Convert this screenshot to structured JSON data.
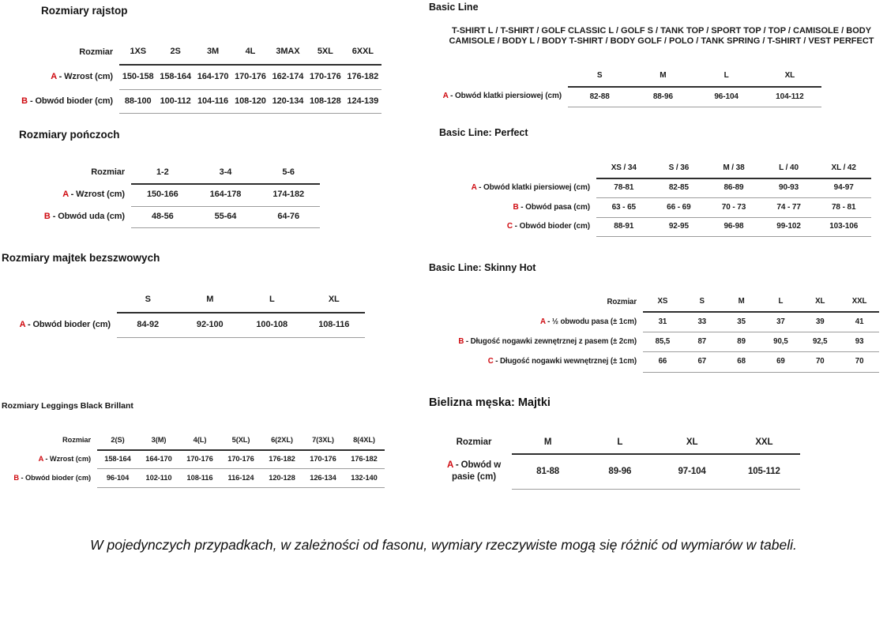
{
  "colors": {
    "accent_red": "#cf0a10",
    "text": "#1b1b1b",
    "rule_dark": "#2e2e2e",
    "rule_light": "#9c9c9c",
    "background": "#ffffff"
  },
  "left": {
    "rajstopy": {
      "title": "Rozmiary rajstop",
      "table": {
        "corner": "Rozmiar",
        "columns": [
          "1XS",
          "2S",
          "3M",
          "4L",
          "3MAX",
          "5XL",
          "6XXL"
        ],
        "rows": [
          {
            "letter": "A",
            "label": "- Wzrost (cm)",
            "values": [
              "150-158",
              "158-164",
              "164-170",
              "170-176",
              "162-174",
              "170-176",
              "176-182"
            ]
          },
          {
            "letter": "B",
            "label": "- Obwód bioder (cm)",
            "values": [
              "88-100",
              "100-112",
              "104-116",
              "108-120",
              "120-134",
              "108-128",
              "124-139"
            ]
          }
        ]
      }
    },
    "ponczochy": {
      "title": "Rozmiary pończoch",
      "table": {
        "corner": "Rozmiar",
        "columns": [
          "1-2",
          "3-4",
          "5-6"
        ],
        "rows": [
          {
            "letter": "A",
            "label": "- Wzrost (cm)",
            "values": [
              "150-166",
              "164-178",
              "174-182"
            ]
          },
          {
            "letter": "B",
            "label": "- Obwód uda (cm)",
            "values": [
              "48-56",
              "55-64",
              "64-76"
            ]
          }
        ]
      }
    },
    "majtki_bezszwowe": {
      "title": "Rozmiary majtek bezszwowych",
      "table": {
        "corner": "",
        "columns": [
          "S",
          "M",
          "L",
          "XL"
        ],
        "rows": [
          {
            "letter": "A",
            "label": "- Obwód bioder (cm)",
            "values": [
              "84-92",
              "92-100",
              "100-108",
              "108-116"
            ]
          }
        ]
      }
    },
    "leggings": {
      "title": "Rozmiary Leggings Black Brillant",
      "table": {
        "corner": "Rozmiar",
        "columns": [
          "2(S)",
          "3(M)",
          "4(L)",
          "5(XL)",
          "6(2XL)",
          "7(3XL)",
          "8(4XL)"
        ],
        "rows": [
          {
            "letter": "A",
            "label": "- Wzrost (cm)",
            "values": [
              "158-164",
              "164-170",
              "170-176",
              "170-176",
              "176-182",
              "170-176",
              "176-182"
            ]
          },
          {
            "letter": "B",
            "label": "- Obwód bioder (cm)",
            "values": [
              "96-104",
              "102-110",
              "108-116",
              "116-124",
              "120-128",
              "126-134",
              "132-140"
            ]
          }
        ]
      }
    }
  },
  "right": {
    "basic_line": {
      "title": "Basic Line",
      "subtitle": "T-SHIRT L / T-SHIRT / GOLF CLASSIC L / GOLF S / TANK TOP / SPORT TOP / TOP / CAMISOLE / BODY CAMISOLE / BODY L / BODY T-SHIRT / BODY GOLF / POLO / TANK SPRING / T-SHIRT / VEST PERFECT",
      "table": {
        "corner": "",
        "columns": [
          "S",
          "M",
          "L",
          "XL"
        ],
        "rows": [
          {
            "letter": "A",
            "label": "- Obwód klatki piersiowej (cm)",
            "values": [
              "82-88",
              "88-96",
              "96-104",
              "104-112"
            ]
          }
        ]
      }
    },
    "basic_line_perfect": {
      "title": "Basic Line: Perfect",
      "table": {
        "corner": "",
        "columns": [
          "XS / 34",
          "S / 36",
          "M / 38",
          "L / 40",
          "XL / 42"
        ],
        "rows": [
          {
            "letter": "A",
            "label": "- Obwód klatki piersiowej (cm)",
            "values": [
              "78-81",
              "82-85",
              "86-89",
              "90-93",
              "94-97"
            ]
          },
          {
            "letter": "B",
            "label": "- Obwód pasa (cm)",
            "values": [
              "63 - 65",
              "66 - 69",
              "70 - 73",
              "74 - 77",
              "78 - 81"
            ]
          },
          {
            "letter": "C",
            "label": "- Obwód bioder (cm)",
            "values": [
              "88-91",
              "92-95",
              "96-98",
              "99-102",
              "103-106"
            ]
          }
        ]
      }
    },
    "basic_line_skinny_hot": {
      "title": "Basic Line: Skinny Hot",
      "table": {
        "corner": "Rozmiar",
        "columns": [
          "XS",
          "S",
          "M",
          "L",
          "XL",
          "XXL"
        ],
        "rows": [
          {
            "letter": "A",
            "label": "- ½ obwodu pasa (± 1cm)",
            "values": [
              "31",
              "33",
              "35",
              "37",
              "39",
              "41"
            ]
          },
          {
            "letter": "B",
            "label": "- Długość nogawki zewnętrznej z pasem (± 2cm)",
            "values": [
              "85,5",
              "87",
              "89",
              "90,5",
              "92,5",
              "93"
            ]
          },
          {
            "letter": "C",
            "label": "- Długość nogawki wewnętrznej (± 1cm)",
            "values": [
              "66",
              "67",
              "68",
              "69",
              "70",
              "70"
            ]
          }
        ]
      }
    },
    "bielizna_meska": {
      "title": "Bielizna męska: Majtki",
      "table": {
        "corner": "Rozmiar",
        "columns": [
          "M",
          "L",
          "XL",
          "XXL"
        ],
        "rows": [
          {
            "letter": "A",
            "label": "- Obwód w pasie (cm)",
            "values": [
              "81-88",
              "89-96",
              "97-104",
              "105-112"
            ]
          }
        ]
      }
    }
  },
  "footnote": "W pojedynczych przypadkach, w zależności od fasonu, wymiary rzeczywiste mogą się różnić od wymiarów w tabeli."
}
